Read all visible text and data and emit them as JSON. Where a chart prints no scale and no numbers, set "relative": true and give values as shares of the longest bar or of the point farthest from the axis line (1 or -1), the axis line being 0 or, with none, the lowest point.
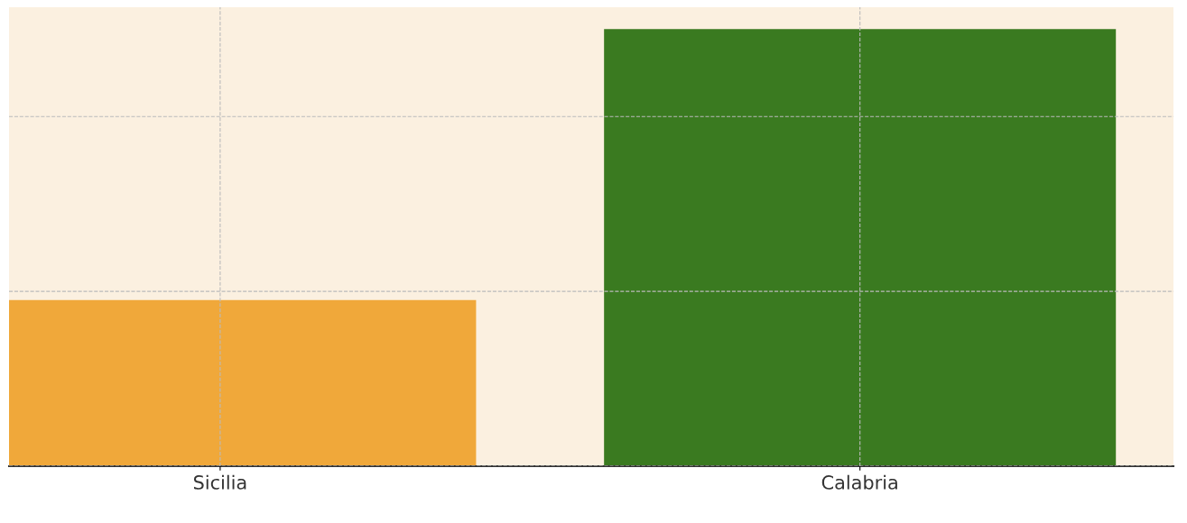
{
  "chart_data": {
    "type": "bar",
    "categories": [
      "Sicilia",
      "Calabria"
    ],
    "values": [
      0.38,
      1
    ],
    "colors": [
      "#f0a83a",
      "#3a7a20"
    ],
    "relative": true,
    "grid": true
  }
}
